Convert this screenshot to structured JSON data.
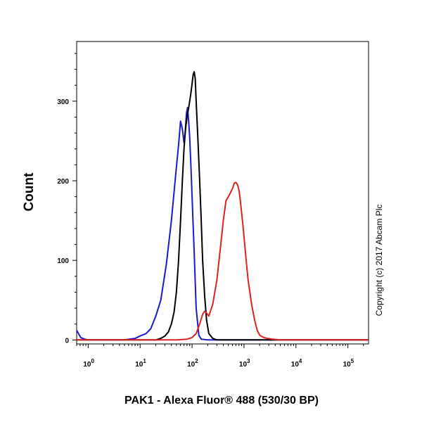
{
  "chart_data": {
    "type": "line",
    "title": "",
    "xlabel": "PAK1 - Alexa Fluor® 488 (530/30 BP)",
    "ylabel": "Count",
    "x_scale": "log",
    "xlim": [
      0.6,
      250000
    ],
    "ylim": [
      -5,
      375
    ],
    "x_ticks": [
      {
        "value": 1,
        "base": "10",
        "exp": "0"
      },
      {
        "value": 10,
        "base": "10",
        "exp": "1"
      },
      {
        "value": 100,
        "base": "10",
        "exp": "2"
      },
      {
        "value": 1000,
        "base": "10",
        "exp": "3"
      },
      {
        "value": 10000,
        "base": "10",
        "exp": "4"
      },
      {
        "value": 100000,
        "base": "10",
        "exp": "5"
      }
    ],
    "y_ticks": [
      0,
      100,
      200,
      300
    ],
    "grid": false,
    "legend": "none",
    "series": [
      {
        "color": "#1a1ac8",
        "x": [
          0.6,
          0.65,
          0.72,
          0.85,
          1,
          2,
          5,
          8,
          10,
          13,
          16,
          20,
          25,
          32,
          40,
          48,
          55,
          60,
          65,
          70,
          74,
          78,
          82,
          86,
          90,
          95,
          100,
          110,
          120,
          135,
          150,
          200,
          1000,
          250000
        ],
        "y": [
          12,
          8,
          3,
          1,
          0,
          0,
          0,
          2,
          5,
          8,
          14,
          30,
          50,
          95,
          150,
          205,
          245,
          275,
          265,
          248,
          262,
          285,
          292,
          275,
          255,
          220,
          180,
          110,
          40,
          6,
          1,
          0,
          0,
          0
        ]
      },
      {
        "color": "#000000",
        "x": [
          0.6,
          10,
          20,
          25,
          30,
          35,
          40,
          45,
          50,
          55,
          60,
          65,
          70,
          75,
          80,
          85,
          90,
          95,
          100,
          105,
          110,
          115,
          120,
          130,
          140,
          150,
          160,
          175,
          190,
          210,
          250,
          300,
          1000,
          250000
        ],
        "y": [
          0,
          0,
          0,
          2,
          5,
          10,
          20,
          35,
          60,
          100,
          150,
          200,
          240,
          265,
          280,
          290,
          300,
          310,
          322,
          333,
          337,
          328,
          300,
          250,
          200,
          150,
          100,
          55,
          25,
          8,
          2,
          0,
          0,
          0
        ]
      },
      {
        "color": "#dd2222",
        "x": [
          0.6,
          20,
          50,
          80,
          100,
          120,
          140,
          160,
          175,
          190,
          210,
          250,
          300,
          350,
          400,
          450,
          500,
          550,
          600,
          650,
          700,
          750,
          800,
          850,
          900,
          950,
          1000,
          1100,
          1200,
          1400,
          1600,
          1800,
          2000,
          2400,
          2800,
          3500,
          5000,
          10000,
          250000
        ],
        "y": [
          0,
          0,
          0,
          1,
          3,
          8,
          20,
          32,
          36,
          34,
          30,
          45,
          75,
          115,
          150,
          175,
          180,
          185,
          190,
          197,
          198,
          195,
          188,
          175,
          160,
          145,
          130,
          100,
          75,
          45,
          25,
          12,
          6,
          3,
          2,
          1,
          0,
          0,
          0
        ]
      }
    ],
    "annotation": "Copyright (c) 2017 Abcam Plc"
  }
}
